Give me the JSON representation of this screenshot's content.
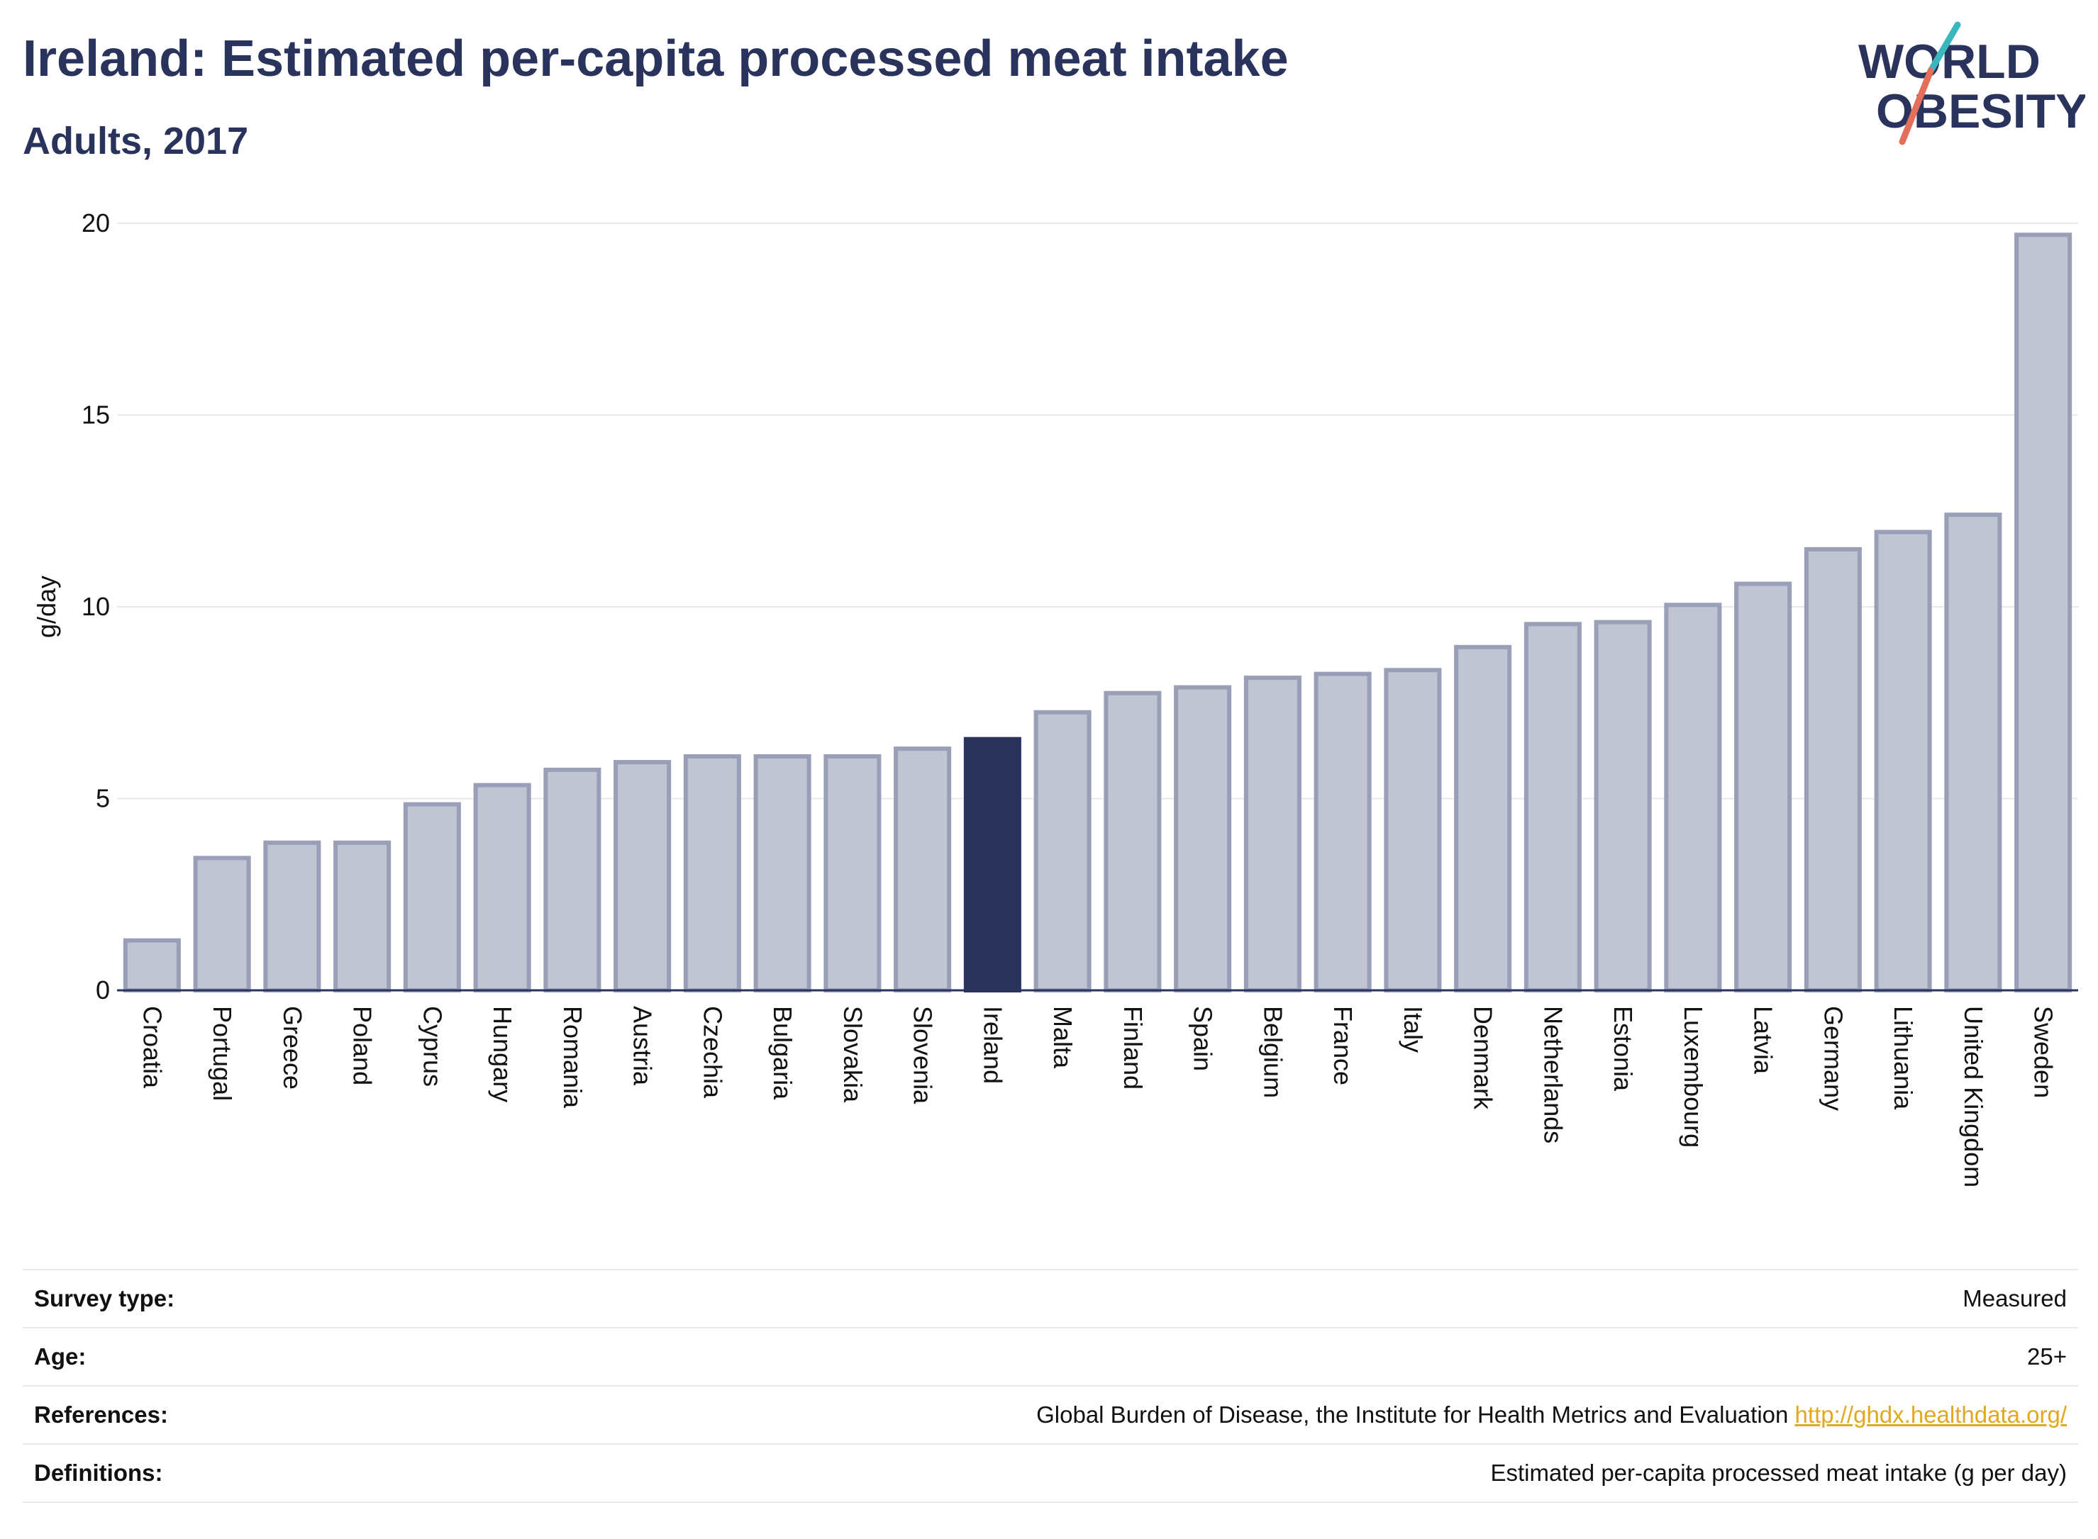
{
  "header": {
    "title": "Ireland: Estimated per-capita processed meat intake",
    "subtitle": "Adults, 2017"
  },
  "logo": {
    "line1": "WORLD",
    "line2": "OBESITY",
    "colors": {
      "text": "#2a335c",
      "slash_teal": "#3ab6bf",
      "slash_coral": "#e4705c"
    }
  },
  "chart_data": {
    "type": "bar",
    "ylabel": "g/day",
    "ylim": [
      0,
      20
    ],
    "yticks": [
      0,
      5,
      10,
      15,
      20
    ],
    "grid": true,
    "highlight": "Ireland",
    "colors": {
      "bar": "#c1c4d1",
      "bar_border": "#9a9fb8",
      "highlight": "#2a335c",
      "grid": "#e8e8ee",
      "axis": "#2a335c"
    },
    "categories": [
      "Croatia",
      "Portugal",
      "Greece",
      "Poland",
      "Cyprus",
      "Hungary",
      "Romania",
      "Austria",
      "Czechia",
      "Bulgaria",
      "Slovakia",
      "Slovenia",
      "Ireland",
      "Malta",
      "Finland",
      "Spain",
      "Belgium",
      "France",
      "Italy",
      "Denmark",
      "Netherlands",
      "Estonia",
      "Luxembourg",
      "Latvia",
      "Germany",
      "Lithuania",
      "United Kingdom",
      "Sweden"
    ],
    "values": [
      1.3,
      3.45,
      3.85,
      3.85,
      4.85,
      5.35,
      5.75,
      5.95,
      6.1,
      6.1,
      6.1,
      6.3,
      6.55,
      7.25,
      7.75,
      7.9,
      8.15,
      8.25,
      8.35,
      8.95,
      9.55,
      9.6,
      10.05,
      10.6,
      11.5,
      11.95,
      12.4,
      19.7
    ]
  },
  "info": {
    "rows": [
      {
        "label": "Survey type:",
        "value": "Measured"
      },
      {
        "label": "Age:",
        "value": "25+"
      },
      {
        "label": "References:",
        "value": "Global Burden of Disease, the Institute for Health Metrics and Evaluation",
        "link": "http://ghdx.healthdata.org/"
      },
      {
        "label": "Definitions:",
        "value": "Estimated per-capita processed meat intake (g per day)"
      }
    ]
  }
}
